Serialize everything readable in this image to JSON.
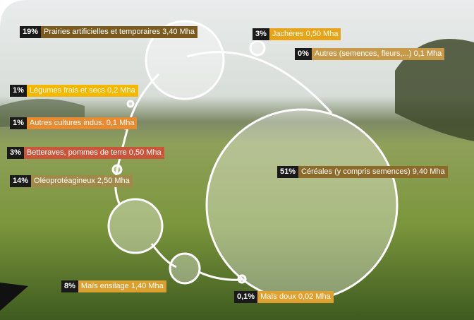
{
  "items": [
    {
      "share": "19%",
      "label": "Prairies artificielles et temporaires 3,40 Mha"
    },
    {
      "share": "3%",
      "label": "Jachères 0,50 Mha"
    },
    {
      "share": "0%",
      "label": "Autres (semences, fleurs,...) 0,1 Mha"
    },
    {
      "share": "1%",
      "label": "Légumes frais et secs 0,2 Mha"
    },
    {
      "share": "1%",
      "label": "Autres cultures indus. 0,1 Mha"
    },
    {
      "share": "3%",
      "label": "Betteraves, pommes de terre 0,50 Mha"
    },
    {
      "share": "14%",
      "label": "Oléoprotéagineux 2,50 Mha"
    },
    {
      "share": "51%",
      "label": "Céréales (y compris semences) 9,40 Mha"
    },
    {
      "share": "8%",
      "label": "Maïs ensilage 1,40 Mha"
    },
    {
      "share": "0,1%",
      "label": "Maïs doux 0,02 Mha"
    }
  ]
}
